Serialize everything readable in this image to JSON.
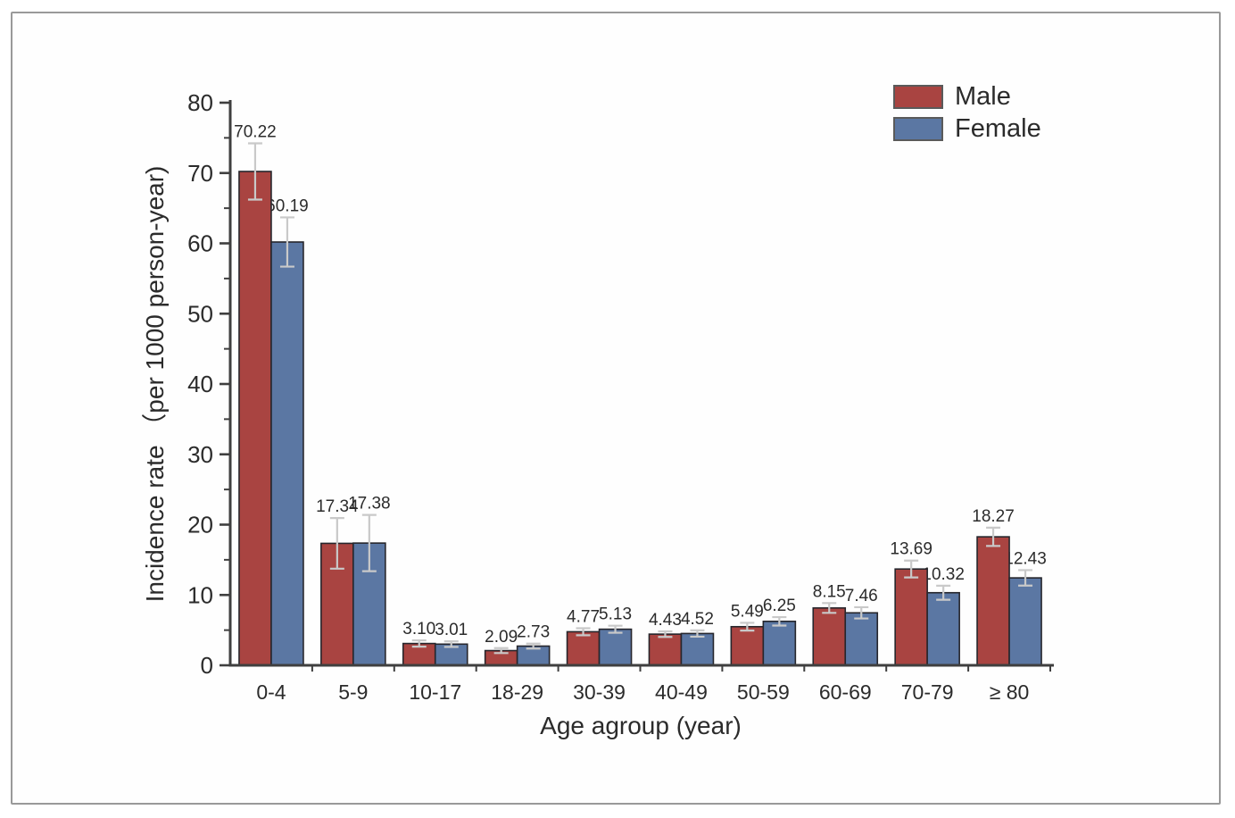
{
  "figure": {
    "background": "#ffffff",
    "frame_border_color": "#999999"
  },
  "chart_data": {
    "type": "bar",
    "title": "",
    "xlabel": "Age agroup (year)",
    "ylabel": "Incidence rate （per 1000 person-year)",
    "categories": [
      "0-4",
      "5-9",
      "10-17",
      "18-29",
      "30-39",
      "40-49",
      "50-59",
      "60-69",
      "70-79",
      "≥ 80"
    ],
    "series": [
      {
        "name": "Male",
        "color": "#A94441",
        "values": [
          70.22,
          17.34,
          3.1,
          2.09,
          4.77,
          4.43,
          5.49,
          8.15,
          13.69,
          18.27
        ],
        "labels": [
          "70.22",
          "17.34",
          "3.10",
          "2.09",
          "4.77",
          "4.43",
          "5.49",
          "8.15",
          "13.69",
          "18.27"
        ],
        "errors": [
          4.0,
          3.6,
          0.45,
          0.35,
          0.5,
          0.4,
          0.55,
          0.7,
          1.2,
          1.3
        ]
      },
      {
        "name": "Female",
        "color": "#5B77A3",
        "values": [
          60.19,
          17.38,
          3.01,
          2.73,
          5.13,
          4.52,
          6.25,
          7.46,
          10.32,
          12.43
        ],
        "labels": [
          "60.19",
          "17.38",
          "3.01",
          "2.73",
          "5.13",
          "4.52",
          "6.25",
          "7.46",
          "10.32",
          "12.43"
        ],
        "errors": [
          3.5,
          4.0,
          0.4,
          0.35,
          0.5,
          0.45,
          0.6,
          0.8,
          1.0,
          1.1
        ]
      }
    ],
    "ylim": [
      0,
      80
    ],
    "yticks": [
      0,
      10,
      20,
      30,
      40,
      50,
      60,
      70,
      80
    ],
    "y_minor_ticks": [
      5,
      15,
      25,
      35,
      45,
      55,
      65,
      75
    ],
    "grid": false,
    "legend_position": "top-right",
    "error_bar_color": "#c9c9c9",
    "bar_edge_color": "#26262c",
    "axis_color": "#3f3f3f",
    "text_color": "#2b2b2b"
  }
}
